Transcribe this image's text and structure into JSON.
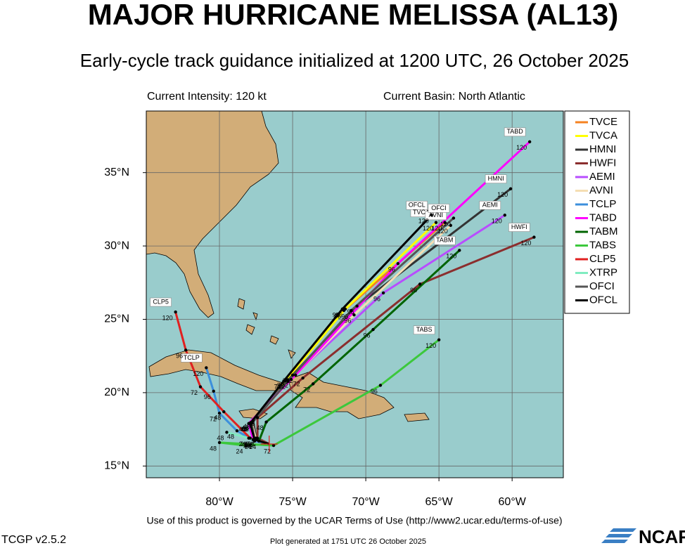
{
  "chart_data": {
    "type": "line",
    "title": "MAJOR HURRICANE MELISSA (AL13)",
    "subtitle": "Early-cycle track guidance initialized at 1200 UTC, 26 October 2025",
    "annotations": {
      "intensity": "Current Intensity: 120 kt",
      "basin": "Current Basin: North Atlantic",
      "terms": "Use of this product is governed by the UCAR Terms of Use (http://www2.ucar.edu/terms-of-use)",
      "version": "TCGP v2.5.2",
      "generated": "Plot generated at 1751 UTC   26 October 2025",
      "logo": "NCAR"
    },
    "xlim": [
      -85,
      -56.5
    ],
    "ylim": [
      14.2,
      39.2
    ],
    "xticks": [
      {
        "value": -80,
        "label": "80°W"
      },
      {
        "value": -75,
        "label": "75°W"
      },
      {
        "value": -70,
        "label": "70°W"
      },
      {
        "value": -65,
        "label": "65°W"
      },
      {
        "value": -60,
        "label": "60°W"
      }
    ],
    "yticks": [
      {
        "value": 15,
        "label": "15°N"
      },
      {
        "value": 20,
        "label": "20°N"
      },
      {
        "value": 25,
        "label": "25°N"
      },
      {
        "value": 30,
        "label": "30°N"
      },
      {
        "value": 35,
        "label": "35°N"
      }
    ],
    "grid": true,
    "legend": "right",
    "initial": {
      "x": -76.6,
      "y": 16.5
    },
    "series": [
      {
        "name": "TVCE",
        "color": "#f58220",
        "hours": [
          24,
          48,
          72,
          96,
          120
        ],
        "x": [
          -77.6,
          -77.9,
          -75.5,
          -71.5,
          -64.6
        ],
        "values": [
          16.8,
          17.9,
          20.8,
          25.6,
          31.6
        ]
      },
      {
        "name": "TVCA",
        "color": "#ffff00",
        "hours": [
          24,
          48,
          72,
          96,
          120
        ],
        "x": [
          -77.6,
          -77.9,
          -75.4,
          -71.4,
          -65.2
        ],
        "values": [
          16.8,
          17.9,
          20.9,
          25.7,
          31.6
        ]
      },
      {
        "name": "HMNI",
        "color": "#333333",
        "hours": [
          24,
          48,
          72,
          96,
          120
        ],
        "x": [
          -77.5,
          -77.7,
          -75.0,
          -70.6,
          -60.1
        ],
        "values": [
          16.9,
          18.1,
          21.2,
          25.9,
          33.9
        ]
      },
      {
        "name": "HWFI",
        "color": "#8b2e2e",
        "hours": [
          24,
          48,
          72,
          96,
          120
        ],
        "x": [
          -77.4,
          -77.4,
          -74.3,
          -66.3,
          -58.5
        ],
        "values": [
          16.9,
          18.3,
          21.0,
          27.4,
          30.6
        ]
      },
      {
        "name": "AEMI",
        "color": "#b84dff",
        "hours": [
          24,
          48,
          72,
          96,
          120
        ],
        "x": [
          -77.6,
          -77.8,
          -75.3,
          -68.8,
          -60.5
        ],
        "values": [
          16.8,
          18.0,
          20.8,
          26.8,
          32.1
        ]
      },
      {
        "name": "AVNI",
        "color": "#f5deb3",
        "hours": [
          24,
          48,
          72,
          96,
          120
        ],
        "x": [
          -77.5,
          -77.8,
          -75.1,
          -70.8,
          -64.2
        ],
        "values": [
          16.8,
          18.0,
          20.9,
          25.3,
          31.4
        ]
      },
      {
        "name": "TCLP",
        "color": "#3c8fdc",
        "hours": [
          24,
          48,
          72,
          96,
          120
        ],
        "x": [
          -77.6,
          -78.8,
          -80.0,
          -80.4,
          -80.9
        ],
        "values": [
          16.7,
          17.4,
          18.6,
          20.1,
          21.7
        ]
      },
      {
        "name": "TABD",
        "color": "#ff00ff",
        "hours": [
          24,
          48,
          72,
          96,
          120
        ],
        "x": [
          -77.7,
          -78.0,
          -74.8,
          -67.8,
          -58.8
        ],
        "values": [
          16.8,
          17.9,
          21.2,
          28.8,
          37.1
        ]
      },
      {
        "name": "TABM",
        "color": "#006400",
        "hours": [
          24,
          48,
          72,
          96,
          120
        ],
        "x": [
          -77.3,
          -76.8,
          -73.6,
          -69.5,
          -63.6
        ],
        "values": [
          16.7,
          18.0,
          20.6,
          24.3,
          29.7
        ]
      },
      {
        "name": "TABS",
        "color": "#3cc83c",
        "hours": [
          24,
          48,
          72,
          96,
          120
        ],
        "x": [
          -78.2,
          -80.0,
          -76.3,
          -69.0,
          -65.0
        ],
        "values": [
          16.4,
          16.6,
          16.4,
          20.5,
          23.6
        ]
      },
      {
        "name": "CLP5",
        "color": "#e02020",
        "hours": [
          24,
          48,
          72,
          96,
          120
        ],
        "x": [
          -77.9,
          -79.7,
          -81.3,
          -82.3,
          -83.0
        ],
        "values": [
          16.9,
          18.7,
          20.4,
          22.9,
          25.5
        ]
      },
      {
        "name": "XTRP",
        "color": "#80ecc0",
        "hours": [
          24,
          48
        ],
        "x": [
          -78.0,
          -79.5
        ],
        "values": [
          16.9,
          17.3
        ]
      },
      {
        "name": "OFCI",
        "color": "#555555",
        "hours": [
          24,
          48,
          72,
          96,
          120
        ],
        "x": [
          -77.6,
          -77.8,
          -75.3,
          -71.0,
          -64.0
        ],
        "values": [
          16.8,
          17.9,
          20.8,
          25.6,
          31.9
        ]
      },
      {
        "name": "OFCL",
        "color": "#000000",
        "hours": [
          24,
          48,
          72,
          96,
          120
        ],
        "x": [
          -77.6,
          -77.9,
          -75.6,
          -71.6,
          -65.5
        ],
        "values": [
          16.8,
          17.9,
          20.8,
          25.7,
          32.1
        ]
      }
    ]
  }
}
